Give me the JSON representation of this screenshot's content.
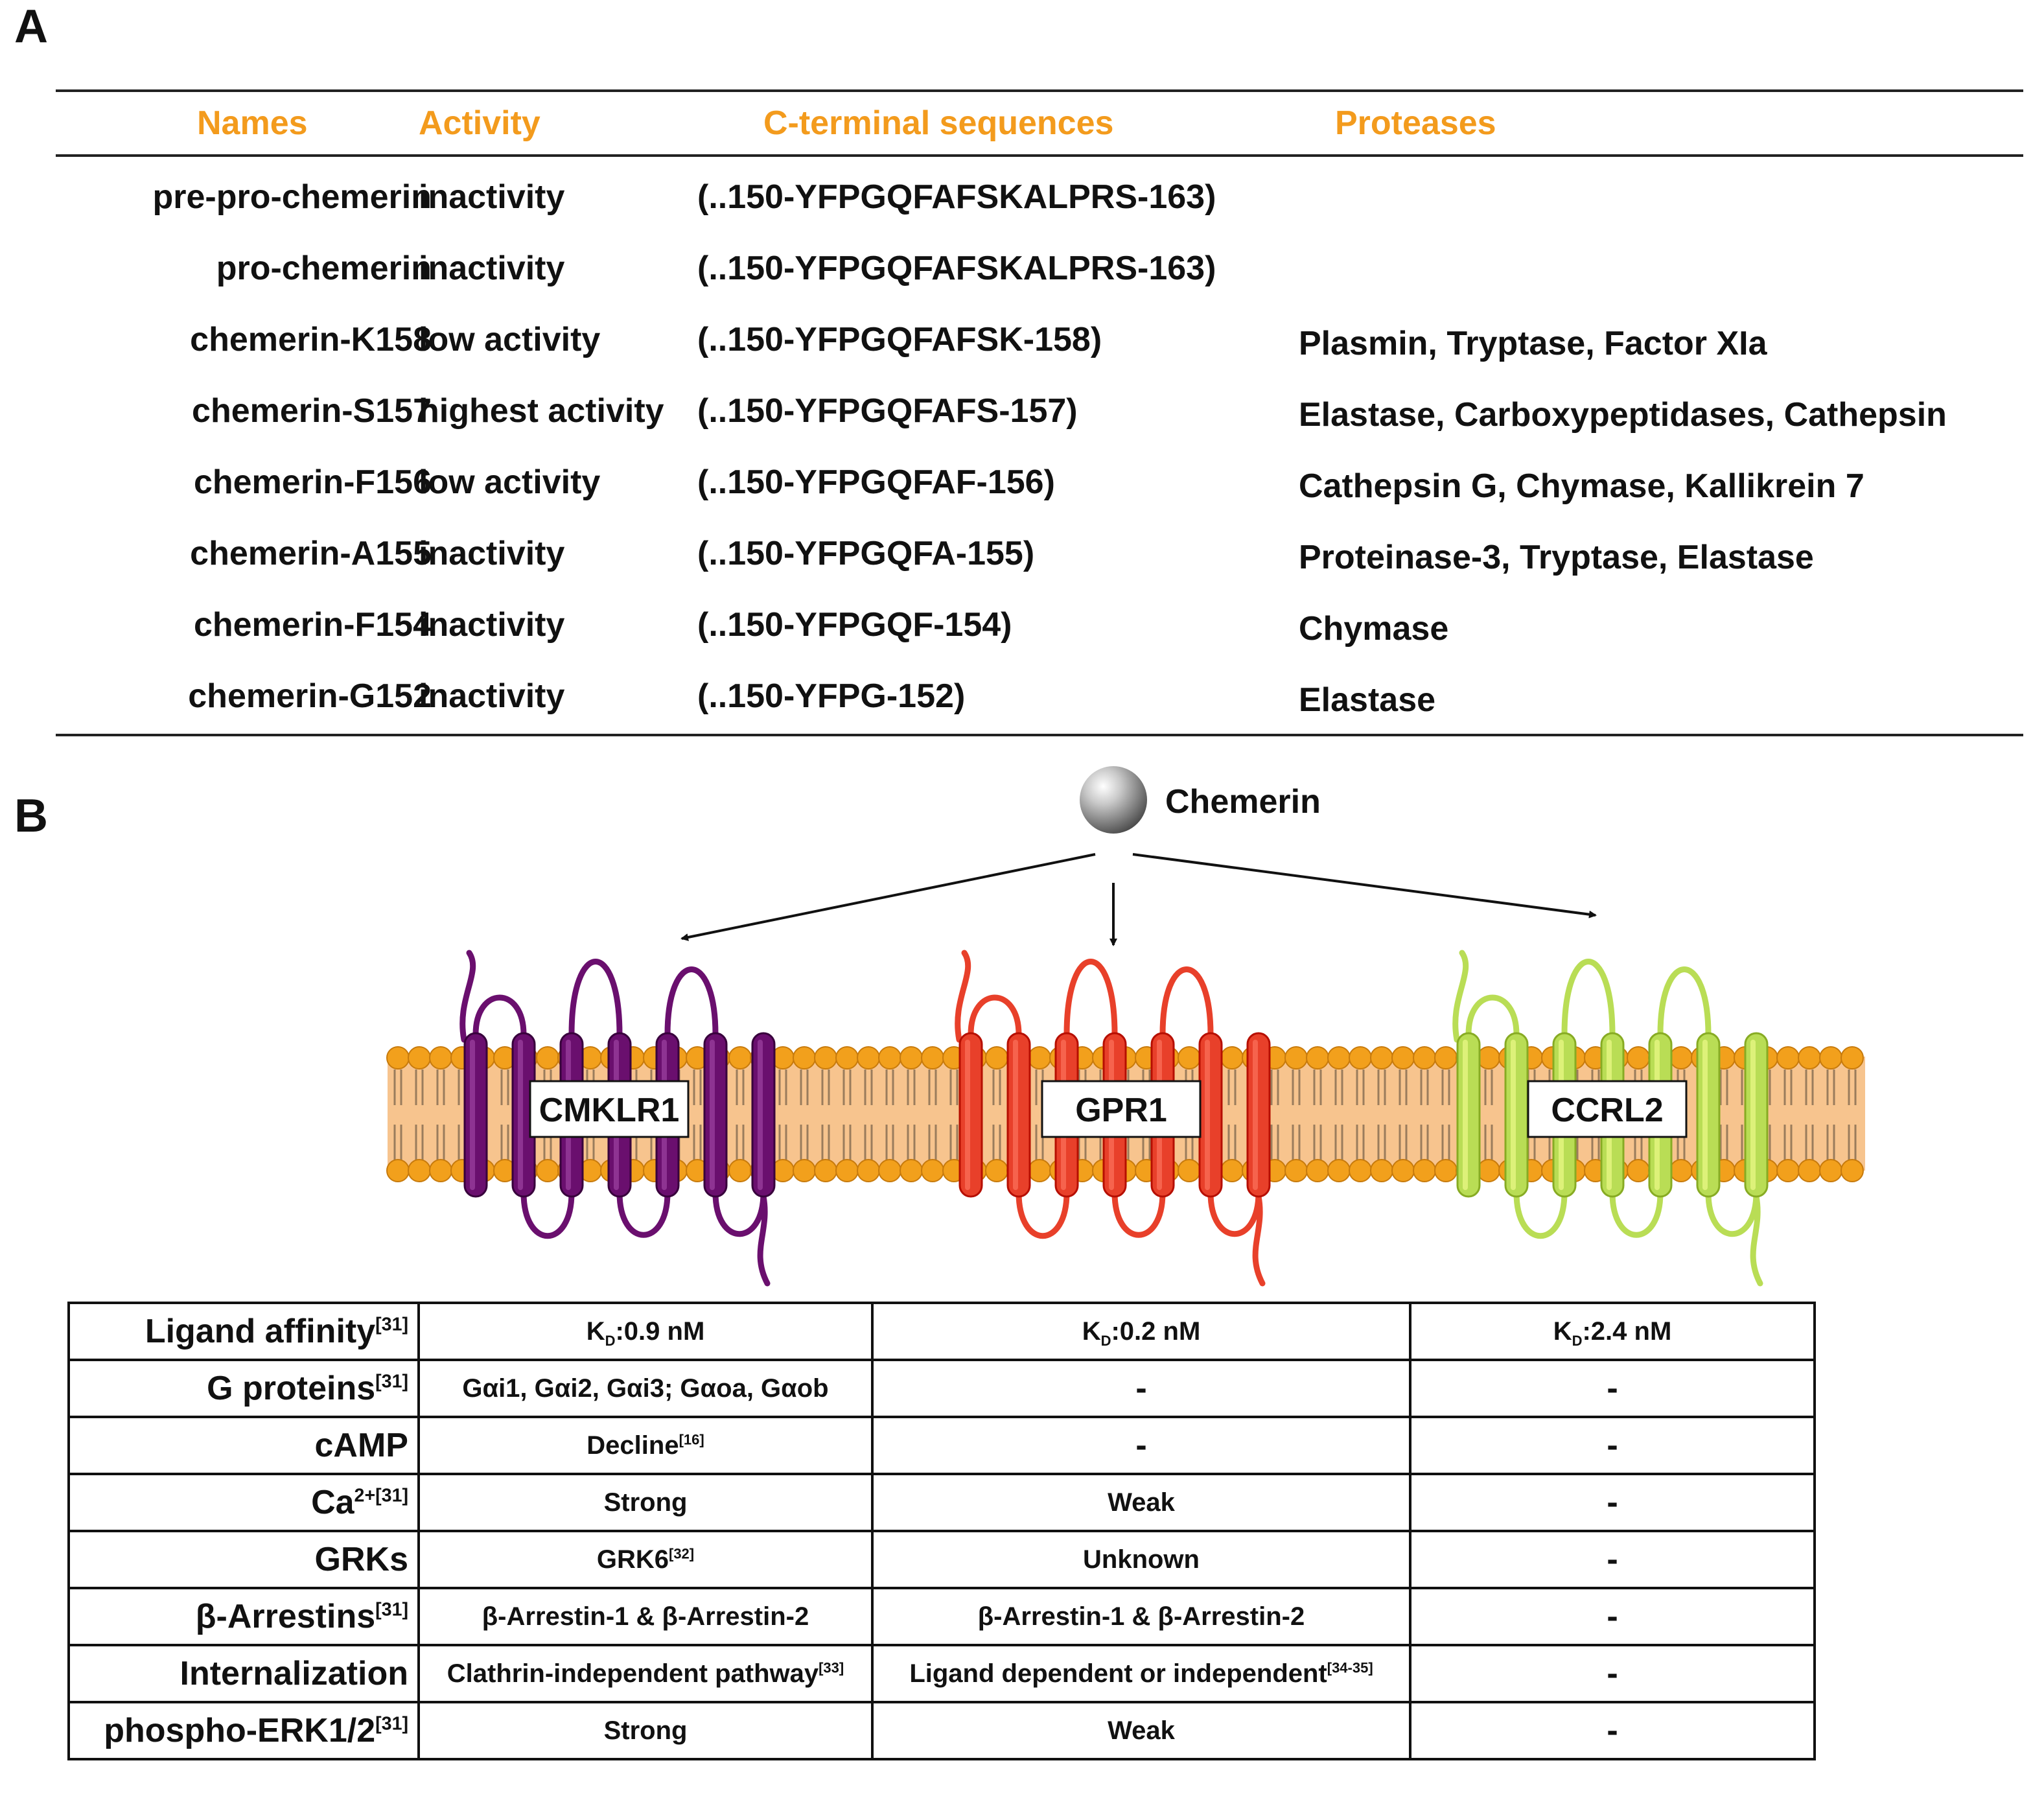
{
  "panel_a_letter": "A",
  "panel_b_letter": "B",
  "table_a": {
    "headers": {
      "name": "Names",
      "activity": "Activity",
      "seq": "C-terminal sequences",
      "protease": "Proteases"
    },
    "rows": [
      {
        "name": "pre-pro-chemerin",
        "activity": "inactivity",
        "seq": "(..150-YFPGQFAFSKALPRS-163)",
        "protease": ""
      },
      {
        "name": "pro-chemerin",
        "activity": "inactivity",
        "seq": "(..150-YFPGQFAFSKALPRS-163)",
        "protease": ""
      },
      {
        "name": "chemerin-K158",
        "activity": "low activity",
        "seq": "(..150-YFPGQFAFSK-158)",
        "protease": "Plasmin, Tryptase, Factor XIa"
      },
      {
        "name": "chemerin-S157",
        "activity": "highest activity",
        "seq": "(..150-YFPGQFAFS-157)",
        "protease": "Elastase, Carboxypeptidases, Cathepsin"
      },
      {
        "name": "chemerin-F156",
        "activity": "low activity",
        "seq": "(..150-YFPGQFAF-156)",
        "protease": "Cathepsin G, Chymase, Kallikrein 7"
      },
      {
        "name": "chemerin-A155",
        "activity": "inactivity",
        "seq": "(..150-YFPGQFA-155)",
        "protease": "Proteinase-3, Tryptase, Elastase"
      },
      {
        "name": "chemerin-F154",
        "activity": "inactivity",
        "seq": "(..150-YFPGQF-154)",
        "protease": "Chymase"
      },
      {
        "name": "chemerin-G152",
        "activity": "inactivity",
        "seq": "(..150-YFPG-152)",
        "protease": "Elastase"
      }
    ]
  },
  "diagram": {
    "ligand": "Chemerin",
    "receptors": [
      {
        "name": "CMKLR1",
        "color": "#6a0f6e"
      },
      {
        "name": "GPR1",
        "color": "#e8402a"
      },
      {
        "name": "CCRL2",
        "color": "#b9dd55"
      }
    ],
    "membrane_color": "#f7c48e",
    "head_color": "#f2a01c"
  },
  "table_b": {
    "rows": [
      {
        "label": "Ligand affinity",
        "label_sup": "[31]",
        "cells": [
          {
            "pre": "K",
            "sub": "D",
            "post": ":0.9 nM"
          },
          {
            "pre": "K",
            "sub": "D",
            "post": ":0.2 nM"
          },
          {
            "pre": "K",
            "sub": "D",
            "post": ":2.4 nM"
          }
        ]
      },
      {
        "label": "G proteins",
        "label_sup": "[31]",
        "cells": [
          {
            "pre": "Gαi1, Gαi2, Gαi3; Gαoa, Gαob"
          },
          {
            "pre": "-"
          },
          {
            "pre": "-"
          }
        ]
      },
      {
        "label": "cAMP",
        "label_sup": "",
        "cells": [
          {
            "pre": "Decline",
            "sup": "[16]"
          },
          {
            "pre": "-"
          },
          {
            "pre": "-"
          }
        ]
      },
      {
        "label": "Ca",
        "label_sup": "2+[31]",
        "cells": [
          {
            "pre": "Strong"
          },
          {
            "pre": "Weak"
          },
          {
            "pre": "-"
          }
        ]
      },
      {
        "label": "GRKs",
        "label_sup": "",
        "cells": [
          {
            "pre": "GRK6",
            "sup": "[32]"
          },
          {
            "pre": "Unknown"
          },
          {
            "pre": "-"
          }
        ]
      },
      {
        "label": "β-Arrestins",
        "label_sup": "[31]",
        "cells": [
          {
            "pre": "β-Arrestin-1 & β-Arrestin-2"
          },
          {
            "pre": "β-Arrestin-1 & β-Arrestin-2"
          },
          {
            "pre": "-"
          }
        ]
      },
      {
        "label": "Internalization",
        "label_sup": "",
        "cells": [
          {
            "pre": "Clathrin-independent pathway",
            "sup": "[33]"
          },
          {
            "pre": "Ligand dependent or independent",
            "sup": "[34-35]"
          },
          {
            "pre": "-"
          }
        ]
      },
      {
        "label": "phospho-ERK1/2",
        "label_sup": "[31]",
        "cells": [
          {
            "pre": "Strong"
          },
          {
            "pre": "Weak"
          },
          {
            "pre": "-"
          }
        ]
      }
    ]
  }
}
